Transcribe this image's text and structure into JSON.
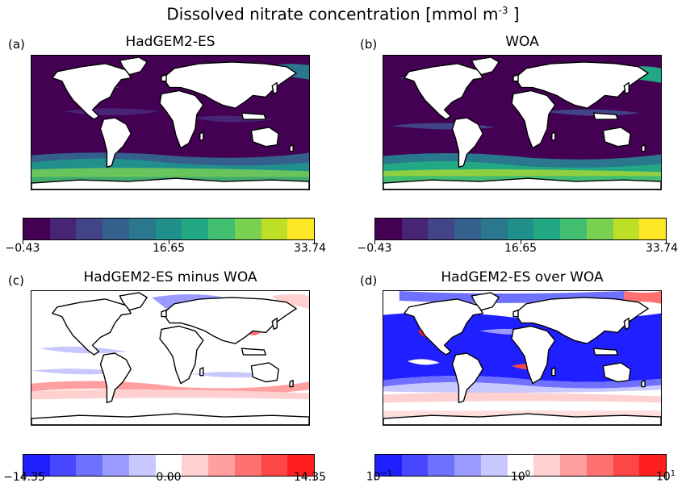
{
  "figure": {
    "title_main": "Dissolved nitrate concentration [mmol m",
    "title_exp": "-3",
    "title_end": " ]"
  },
  "panels": [
    {
      "letter": "(a)",
      "title": "HadGEM2-ES"
    },
    {
      "letter": "(b)",
      "title": "WOA"
    },
    {
      "letter": "(c)",
      "title": "HadGEM2-ES minus WOA"
    },
    {
      "letter": "(d)",
      "title": "HadGEM2-ES over WOA"
    }
  ],
  "colorbars": {
    "concentration": {
      "ticks": [
        "−0.43",
        "16.65",
        "33.74"
      ],
      "colors": [
        "#440154",
        "#482475",
        "#414487",
        "#355f8d",
        "#2a788e",
        "#21908d",
        "#22a884",
        "#42be71",
        "#7ad151",
        "#bddf26",
        "#fde725"
      ]
    },
    "difference": {
      "ticks": [
        "−14.35",
        "0.00",
        "14.35"
      ],
      "colors": [
        "#1f1fff",
        "#4848ff",
        "#7070ff",
        "#9a9aff",
        "#c8c8ff",
        "#ffffff",
        "#ffd0d0",
        "#ff9f9f",
        "#ff7070",
        "#ff4646",
        "#ff1f1f"
      ]
    },
    "ratio": {
      "tick_bases": [
        "10",
        "10",
        "10"
      ],
      "tick_exps": [
        "−1",
        "0",
        "1"
      ],
      "colors": [
        "#1f1fff",
        "#4848ff",
        "#7070ff",
        "#9a9aff",
        "#c8c8ff",
        "#ffffff",
        "#ffd0d0",
        "#ff9f9f",
        "#ff7070",
        "#ff4646",
        "#ff1f1f"
      ]
    }
  },
  "colors": {
    "land": "#ffffff",
    "coastline": "#000000",
    "low_nitrate": "#440154",
    "high_nitrate": "#7ad151",
    "model_high": "#42be71",
    "negative": "#2525ff",
    "positive": "#ff4040"
  }
}
